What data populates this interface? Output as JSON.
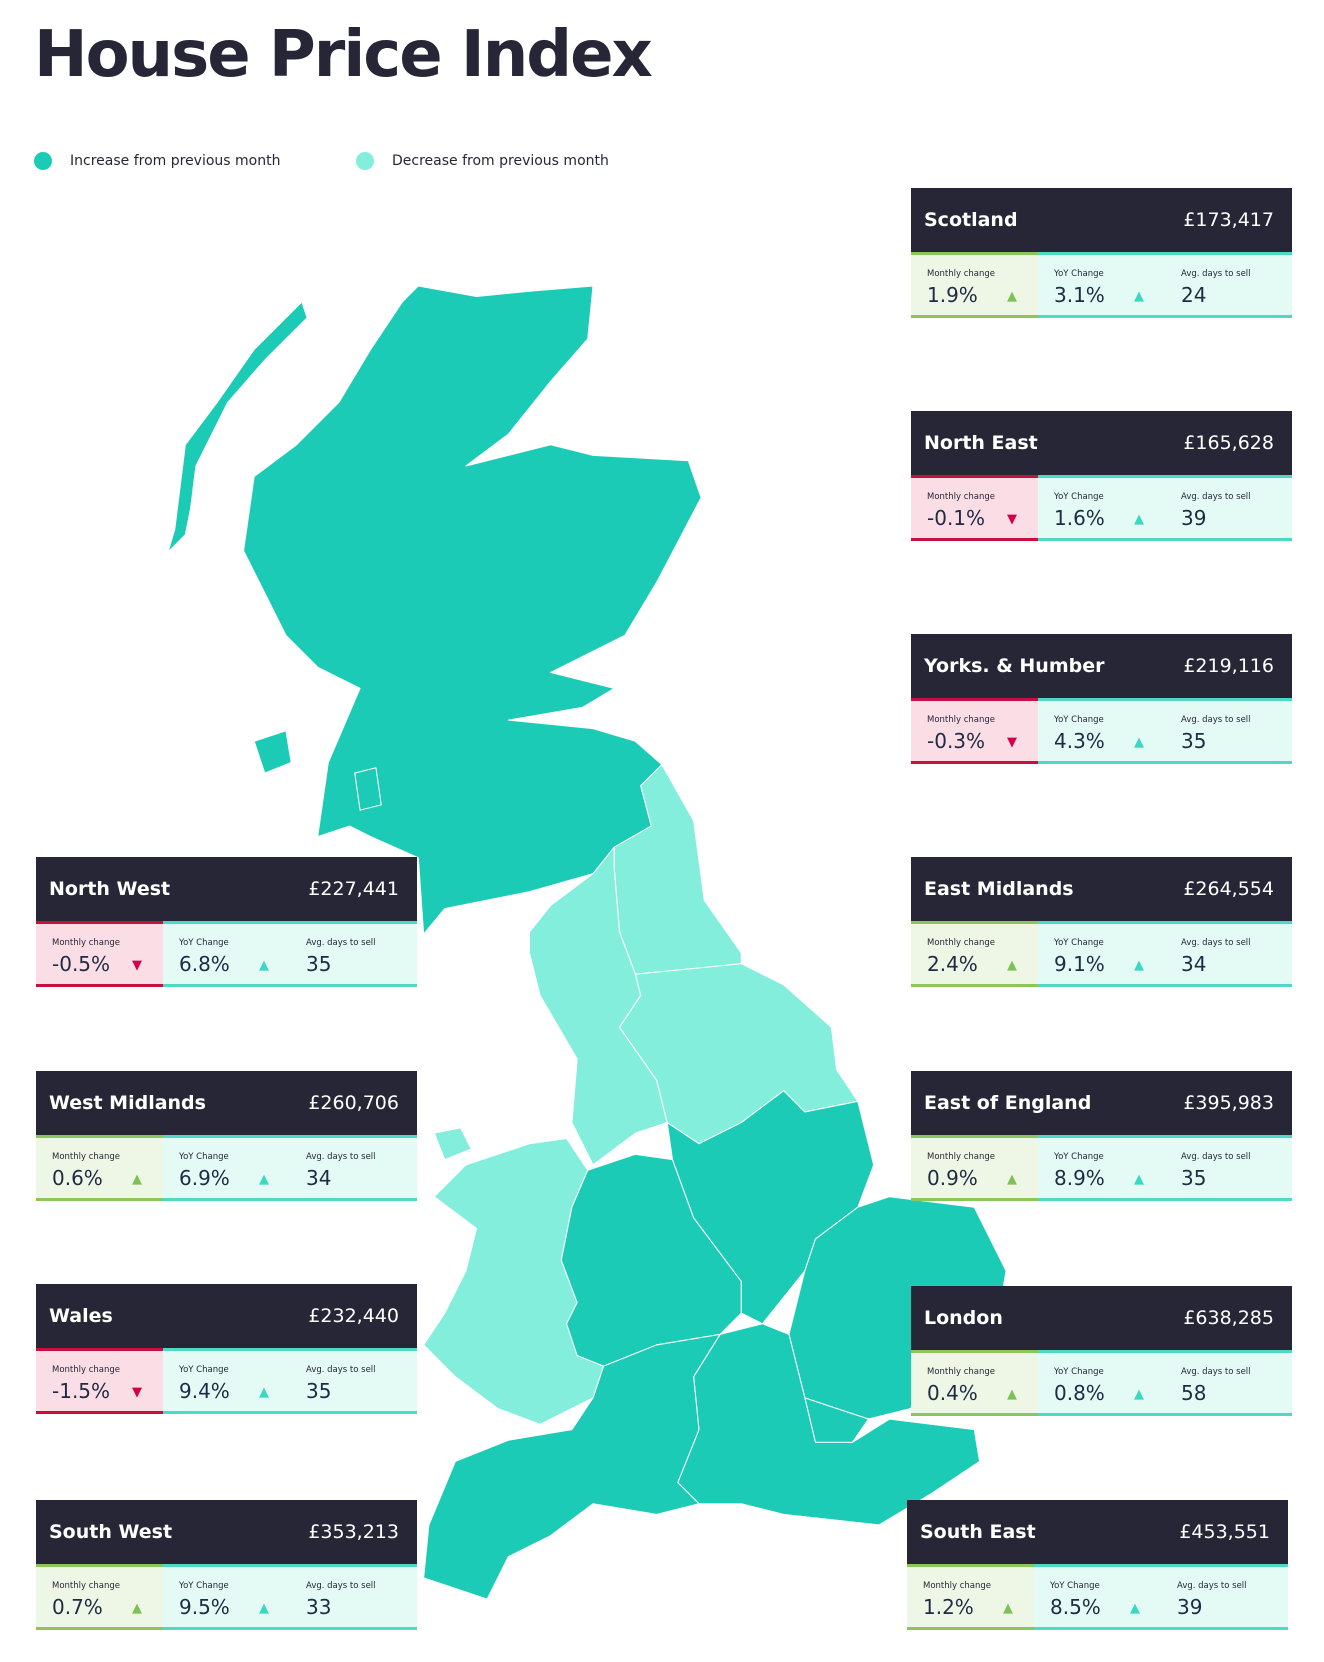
{
  "title": "House Price Index",
  "legend": [
    {
      "label": "Increase from previous month",
      "color": "#1ccbb5"
    },
    {
      "label": "Decrease from previous month",
      "color": "#83eedb"
    }
  ],
  "labels": {
    "monthly": "Monthly change",
    "yoy": "YoY Change",
    "days": "Avg. days to sell"
  },
  "colors": {
    "increase": "#1ccbb5",
    "decrease": "#83eedb",
    "header": "#262637",
    "up_monthly": "#7dc055",
    "up_yoy": "#3ad8c0",
    "down": "#d4004a"
  },
  "regions": [
    {
      "name": "Scotland",
      "price": "£173,417",
      "monthly": "1.9%",
      "monthly_dir": "up",
      "yoy": "3.1%",
      "days": "24"
    },
    {
      "name": "North East",
      "price": "£165,628",
      "monthly": "-0.1%",
      "monthly_dir": "down",
      "yoy": "1.6%",
      "days": "39"
    },
    {
      "name": "Yorks. & Humber",
      "price": "£219,116",
      "monthly": "-0.3%",
      "monthly_dir": "down",
      "yoy": "4.3%",
      "days": "35"
    },
    {
      "name": "East Midlands",
      "price": "£264,554",
      "monthly": "2.4%",
      "monthly_dir": "up",
      "yoy": "9.1%",
      "days": "34"
    },
    {
      "name": "East of England",
      "price": "£395,983",
      "monthly": "0.9%",
      "monthly_dir": "up",
      "yoy": "8.9%",
      "days": "35"
    },
    {
      "name": "London",
      "price": "£638,285",
      "monthly": "0.4%",
      "monthly_dir": "up",
      "yoy": "0.8%",
      "days": "58"
    },
    {
      "name": "South East",
      "price": "£453,551",
      "monthly": "1.2%",
      "monthly_dir": "up",
      "yoy": "8.5%",
      "days": "39"
    },
    {
      "name": "North West",
      "price": "£227,441",
      "monthly": "-0.5%",
      "monthly_dir": "down",
      "yoy": "6.8%",
      "days": "35"
    },
    {
      "name": "West Midlands",
      "price": "£260,706",
      "monthly": "0.6%",
      "monthly_dir": "up",
      "yoy": "6.9%",
      "days": "34"
    },
    {
      "name": "Wales",
      "price": "£232,440",
      "monthly": "-1.5%",
      "monthly_dir": "down",
      "yoy": "9.4%",
      "days": "35"
    },
    {
      "name": "South West",
      "price": "£353,213",
      "monthly": "0.7%",
      "monthly_dir": "up",
      "yoy": "9.5%",
      "days": "33"
    }
  ]
}
